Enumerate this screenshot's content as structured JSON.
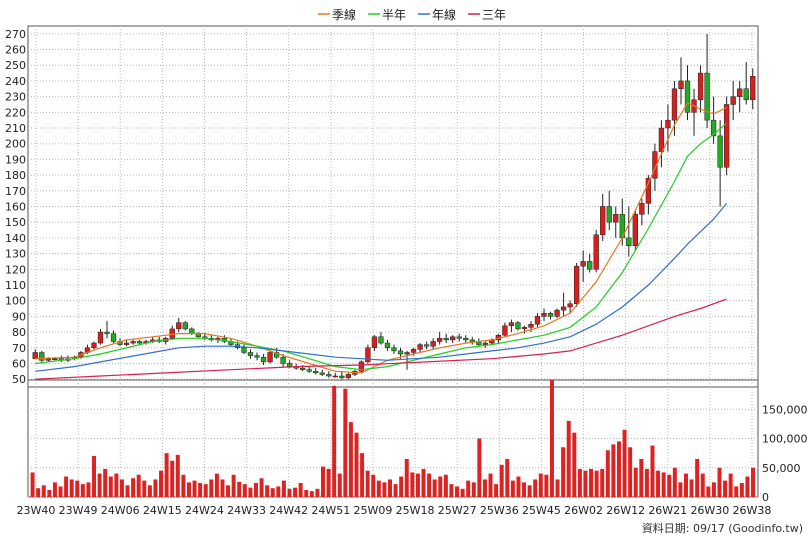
{
  "legend": {
    "items": [
      {
        "label": "季線",
        "color": "#e87722"
      },
      {
        "label": "半年",
        "color": "#22cc22"
      },
      {
        "label": "年線",
        "color": "#2f6fd6"
      },
      {
        "label": "三年",
        "color": "#d8204f"
      }
    ]
  },
  "footer": {
    "source": "資料日期: 09/17  (Goodinfo.tw)"
  },
  "chart_data": [
    {
      "type": "candlestick",
      "title": "",
      "ylim": [
        45,
        275
      ],
      "y_ticks": [
        50,
        60,
        70,
        80,
        90,
        100,
        110,
        120,
        130,
        140,
        150,
        160,
        170,
        180,
        190,
        200,
        210,
        220,
        230,
        240,
        250,
        260,
        270
      ],
      "up_color": "#d62020",
      "down_color": "#22aa22",
      "x_ticks": [
        "23W40",
        "23W49",
        "24W06",
        "24W15",
        "24W24",
        "24W33",
        "24W42",
        "24W51",
        "25W09",
        "25W18",
        "25W27",
        "25W36",
        "25W45",
        "26W02",
        "26W12",
        "26W21",
        "26W30",
        "26W38"
      ],
      "series_ohlc": [
        [
          63,
          69,
          63,
          67
        ],
        [
          67,
          68,
          60,
          62
        ],
        [
          62,
          64,
          61,
          63
        ],
        [
          63,
          64,
          62,
          63
        ],
        [
          63,
          65,
          61,
          62
        ],
        [
          62,
          65,
          61,
          63
        ],
        [
          63,
          65,
          62,
          64
        ],
        [
          64,
          68,
          63,
          67
        ],
        [
          67,
          72,
          66,
          70
        ],
        [
          70,
          74,
          69,
          73
        ],
        [
          73,
          82,
          72,
          80
        ],
        [
          80,
          87,
          76,
          79
        ],
        [
          79,
          81,
          73,
          74
        ],
        [
          74,
          76,
          71,
          72
        ],
        [
          72,
          75,
          71,
          73
        ],
        [
          73,
          75,
          72,
          74
        ],
        [
          74,
          75,
          72,
          73
        ],
        [
          73,
          75,
          72,
          74
        ],
        [
          74,
          77,
          73,
          75
        ],
        [
          75,
          77,
          73,
          74
        ],
        [
          74,
          77,
          72,
          76
        ],
        [
          76,
          84,
          75,
          82
        ],
        [
          82,
          89,
          80,
          86
        ],
        [
          86,
          87,
          81,
          82
        ],
        [
          82,
          83,
          78,
          79
        ],
        [
          79,
          80,
          76,
          77
        ],
        [
          77,
          79,
          75,
          76
        ],
        [
          76,
          78,
          74,
          75
        ],
        [
          75,
          77,
          73,
          76
        ],
        [
          76,
          78,
          73,
          74
        ],
        [
          74,
          76,
          71,
          72
        ],
        [
          72,
          74,
          69,
          70
        ],
        [
          70,
          72,
          66,
          67
        ],
        [
          67,
          69,
          63,
          65
        ],
        [
          65,
          67,
          62,
          64
        ],
        [
          64,
          66,
          59,
          61
        ],
        [
          61,
          68,
          60,
          67
        ],
        [
          67,
          70,
          63,
          64
        ],
        [
          64,
          66,
          58,
          60
        ],
        [
          60,
          62,
          57,
          58
        ],
        [
          58,
          60,
          56,
          57
        ],
        [
          57,
          59,
          55,
          56
        ],
        [
          56,
          58,
          54,
          55
        ],
        [
          55,
          57,
          53,
          54
        ],
        [
          54,
          56,
          52,
          53
        ],
        [
          53,
          55,
          51,
          52
        ],
        [
          52,
          54,
          51,
          52
        ],
        [
          52,
          55,
          50,
          51
        ],
        [
          51,
          54,
          50,
          53
        ],
        [
          53,
          56,
          52,
          55
        ],
        [
          55,
          62,
          54,
          61
        ],
        [
          61,
          72,
          60,
          70
        ],
        [
          70,
          78,
          68,
          77
        ],
        [
          77,
          80,
          72,
          73
        ],
        [
          73,
          75,
          68,
          70
        ],
        [
          70,
          72,
          66,
          68
        ],
        [
          68,
          70,
          63,
          66
        ],
        [
          66,
          68,
          56,
          67
        ],
        [
          67,
          70,
          65,
          69
        ],
        [
          69,
          73,
          67,
          72
        ],
        [
          72,
          74,
          69,
          71
        ],
        [
          71,
          76,
          69,
          74
        ],
        [
          74,
          80,
          72,
          76
        ],
        [
          76,
          79,
          73,
          75
        ],
        [
          75,
          78,
          73,
          77
        ],
        [
          77,
          79,
          74,
          76
        ],
        [
          76,
          78,
          73,
          75
        ],
        [
          75,
          77,
          72,
          74
        ],
        [
          74,
          76,
          71,
          72
        ],
        [
          72,
          74,
          70,
          73
        ],
        [
          73,
          76,
          72,
          75
        ],
        [
          75,
          79,
          73,
          78
        ],
        [
          78,
          86,
          77,
          84
        ],
        [
          84,
          88,
          80,
          86
        ],
        [
          86,
          87,
          81,
          82
        ],
        [
          82,
          84,
          79,
          83
        ],
        [
          83,
          87,
          80,
          85
        ],
        [
          85,
          92,
          83,
          90
        ],
        [
          90,
          95,
          87,
          92
        ],
        [
          92,
          93,
          88,
          90
        ],
        [
          90,
          95,
          89,
          94
        ],
        [
          94,
          105,
          90,
          96
        ],
        [
          96,
          100,
          92,
          98
        ],
        [
          98,
          124,
          96,
          122
        ],
        [
          122,
          132,
          112,
          125
        ],
        [
          125,
          130,
          118,
          120
        ],
        [
          120,
          145,
          118,
          142
        ],
        [
          142,
          168,
          138,
          160
        ],
        [
          160,
          170,
          145,
          150
        ],
        [
          150,
          160,
          140,
          155
        ],
        [
          155,
          165,
          135,
          140
        ],
        [
          140,
          160,
          128,
          135
        ],
        [
          135,
          158,
          132,
          155
        ],
        [
          155,
          165,
          148,
          162
        ],
        [
          162,
          180,
          155,
          178
        ],
        [
          178,
          200,
          170,
          195
        ],
        [
          195,
          215,
          185,
          210
        ],
        [
          210,
          225,
          195,
          215
        ],
        [
          215,
          240,
          205,
          235
        ],
        [
          235,
          255,
          225,
          240
        ],
        [
          240,
          250,
          215,
          220
        ],
        [
          220,
          235,
          205,
          228
        ],
        [
          228,
          250,
          220,
          245
        ],
        [
          245,
          270,
          210,
          215
        ],
        [
          215,
          230,
          200,
          205
        ],
        [
          205,
          215,
          160,
          185
        ],
        [
          185,
          230,
          180,
          225
        ],
        [
          225,
          240,
          215,
          230
        ],
        [
          230,
          240,
          220,
          235
        ],
        [
          235,
          252,
          225,
          228
        ],
        [
          228,
          248,
          222,
          243
        ]
      ],
      "series": [
        {
          "name": "季線",
          "color": "#e87722",
          "values": [
            [
              0,
              63
            ],
            [
              6,
              64
            ],
            [
              10,
              70
            ],
            [
              14,
              75
            ],
            [
              18,
              77
            ],
            [
              22,
              79
            ],
            [
              26,
              79
            ],
            [
              30,
              76
            ],
            [
              34,
              71
            ],
            [
              38,
              65
            ],
            [
              42,
              60
            ],
            [
              46,
              55
            ],
            [
              50,
              54
            ],
            [
              54,
              62
            ],
            [
              58,
              66
            ],
            [
              62,
              70
            ],
            [
              66,
              73
            ],
            [
              70,
              75
            ],
            [
              74,
              79
            ],
            [
              78,
              84
            ],
            [
              82,
              92
            ],
            [
              86,
              112
            ],
            [
              90,
              140
            ],
            [
              94,
              175
            ],
            [
              98,
              212
            ],
            [
              100,
              226
            ],
            [
              102,
              222
            ],
            [
              104,
              219
            ],
            [
              106,
              223
            ]
          ]
        },
        {
          "name": "半年",
          "color": "#22cc22",
          "values": [
            [
              0,
              60
            ],
            [
              6,
              63
            ],
            [
              10,
              66
            ],
            [
              14,
              70
            ],
            [
              18,
              74
            ],
            [
              22,
              76
            ],
            [
              26,
              76
            ],
            [
              30,
              74
            ],
            [
              34,
              71
            ],
            [
              38,
              68
            ],
            [
              42,
              63
            ],
            [
              46,
              58
            ],
            [
              50,
              56
            ],
            [
              54,
              58
            ],
            [
              58,
              62
            ],
            [
              62,
              66
            ],
            [
              66,
              70
            ],
            [
              70,
              72
            ],
            [
              74,
              75
            ],
            [
              78,
              78
            ],
            [
              82,
              83
            ],
            [
              86,
              96
            ],
            [
              90,
              118
            ],
            [
              94,
              146
            ],
            [
              98,
              176
            ],
            [
              100,
              192
            ],
            [
              102,
              200
            ],
            [
              104,
              206
            ],
            [
              106,
              213
            ]
          ]
        },
        {
          "name": "年線",
          "color": "#2f6fd6",
          "values": [
            [
              0,
              55
            ],
            [
              6,
              58
            ],
            [
              10,
              61
            ],
            [
              14,
              64
            ],
            [
              18,
              67
            ],
            [
              22,
              70
            ],
            [
              26,
              71
            ],
            [
              30,
              71
            ],
            [
              34,
              70
            ],
            [
              38,
              68
            ],
            [
              42,
              66
            ],
            [
              46,
              64
            ],
            [
              50,
              63
            ],
            [
              54,
              62
            ],
            [
              58,
              63
            ],
            [
              62,
              64
            ],
            [
              66,
              66
            ],
            [
              70,
              68
            ],
            [
              74,
              70
            ],
            [
              78,
              73
            ],
            [
              82,
              77
            ],
            [
              86,
              85
            ],
            [
              90,
              96
            ],
            [
              94,
              110
            ],
            [
              98,
              127
            ],
            [
              100,
              136
            ],
            [
              102,
              144
            ],
            [
              104,
              152
            ],
            [
              106,
              162
            ]
          ]
        },
        {
          "name": "三年",
          "color": "#d8204f",
          "values": [
            [
              0,
              50
            ],
            [
              10,
              52
            ],
            [
              20,
              54
            ],
            [
              30,
              56
            ],
            [
              40,
              58
            ],
            [
              50,
              59
            ],
            [
              60,
              61
            ],
            [
              70,
              63
            ],
            [
              78,
              66
            ],
            [
              82,
              68
            ],
            [
              86,
              73
            ],
            [
              90,
              78
            ],
            [
              94,
              84
            ],
            [
              98,
              90
            ],
            [
              102,
              95
            ],
            [
              106,
              101
            ]
          ]
        }
      ]
    },
    {
      "type": "bar",
      "title": "",
      "ylim": [
        0,
        200000
      ],
      "y_ticks": [
        0,
        50000,
        100000,
        150000
      ],
      "y_tick_labels": [
        "0",
        "50,000",
        "100,000",
        "150,000"
      ],
      "bar_color": "#dd2222",
      "values": [
        42000,
        15000,
        20000,
        12000,
        25000,
        18000,
        35000,
        30000,
        28000,
        22000,
        25000,
        70000,
        40000,
        48000,
        35000,
        40000,
        30000,
        20000,
        32000,
        38000,
        28000,
        20000,
        30000,
        45000,
        75000,
        62000,
        72000,
        38000,
        25000,
        28000,
        24000,
        22000,
        30000,
        40000,
        30000,
        20000,
        38000,
        26000,
        22000,
        16000,
        24000,
        32000,
        20000,
        15000,
        18000,
        28000,
        14000,
        16000,
        24000,
        12000,
        10000,
        14000,
        52000,
        48000,
        190000,
        40000,
        185000,
        128000,
        110000,
        75000,
        45000,
        38000,
        28000,
        25000,
        30000,
        22000,
        35000,
        65000,
        42000,
        40000,
        48000,
        40000,
        30000,
        35000,
        38000,
        22000,
        18000,
        14000,
        28000,
        25000,
        100000,
        30000,
        40000,
        22000,
        55000,
        65000,
        28000,
        35000,
        25000,
        20000,
        30000,
        40000,
        38000,
        200000,
        30000,
        85000,
        130000,
        110000,
        48000,
        45000,
        48000,
        45000,
        48000,
        80000,
        90000,
        95000,
        115000,
        85000,
        50000,
        65000,
        48000,
        88000,
        45000,
        42000,
        38000,
        50000,
        25000,
        40000,
        30000,
        65000,
        40000,
        18000,
        25000,
        50000,
        28000,
        40000,
        18000,
        24000,
        35000,
        50000
      ]
    }
  ]
}
